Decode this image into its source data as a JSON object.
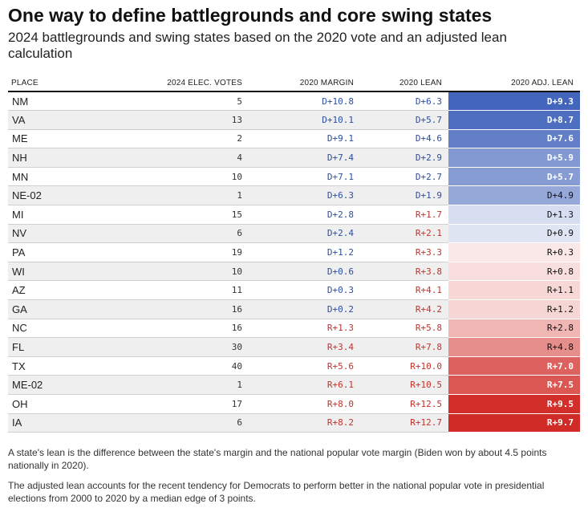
{
  "header": {
    "title": "One way to define battlegrounds and core swing states",
    "subtitle": "2024 battlegrounds and swing states based on the 2020 vote and an adjusted lean calculation"
  },
  "notes": [
    "A state's lean is the difference between the state's margin and the national popular vote margin (Biden won by about 4.5 points nationally in 2020).",
    "The adjusted lean accounts for the recent tendency for Democrats to perform better in the national popular vote in presidential elections from 2000 to 2020 by a median edge of 3 points."
  ],
  "colors": {
    "dem_text": "#2b4ea0",
    "rep_text": "#c3322c",
    "dem_scale_max": "#3c5fb8",
    "rep_scale_max": "#d12b27"
  },
  "chart_data": {
    "type": "table",
    "columns": [
      "PLACE",
      "2024 ELEC. VOTES",
      "2020 MARGIN",
      "2020 LEAN",
      "2020 ADJ. LEAN"
    ],
    "rows": [
      {
        "place": "NM",
        "votes": 5,
        "margin": "D+10.8",
        "lean": "D+6.3",
        "adj_lean": "D+9.3",
        "adj_value": 9.3
      },
      {
        "place": "VA",
        "votes": 13,
        "margin": "D+10.1",
        "lean": "D+5.7",
        "adj_lean": "D+8.7",
        "adj_value": 8.7
      },
      {
        "place": "ME",
        "votes": 2,
        "margin": "D+9.1",
        "lean": "D+4.6",
        "adj_lean": "D+7.6",
        "adj_value": 7.6
      },
      {
        "place": "NH",
        "votes": 4,
        "margin": "D+7.4",
        "lean": "D+2.9",
        "adj_lean": "D+5.9",
        "adj_value": 5.9
      },
      {
        "place": "MN",
        "votes": 10,
        "margin": "D+7.1",
        "lean": "D+2.7",
        "adj_lean": "D+5.7",
        "adj_value": 5.7
      },
      {
        "place": "NE-02",
        "votes": 1,
        "margin": "D+6.3",
        "lean": "D+1.9",
        "adj_lean": "D+4.9",
        "adj_value": 4.9
      },
      {
        "place": "MI",
        "votes": 15,
        "margin": "D+2.8",
        "lean": "R+1.7",
        "adj_lean": "D+1.3",
        "adj_value": 1.3
      },
      {
        "place": "NV",
        "votes": 6,
        "margin": "D+2.4",
        "lean": "R+2.1",
        "adj_lean": "D+0.9",
        "adj_value": 0.9
      },
      {
        "place": "PA",
        "votes": 19,
        "margin": "D+1.2",
        "lean": "R+3.3",
        "adj_lean": "R+0.3",
        "adj_value": -0.3
      },
      {
        "place": "WI",
        "votes": 10,
        "margin": "D+0.6",
        "lean": "R+3.8",
        "adj_lean": "R+0.8",
        "adj_value": -0.8
      },
      {
        "place": "AZ",
        "votes": 11,
        "margin": "D+0.3",
        "lean": "R+4.1",
        "adj_lean": "R+1.1",
        "adj_value": -1.1
      },
      {
        "place": "GA",
        "votes": 16,
        "margin": "D+0.2",
        "lean": "R+4.2",
        "adj_lean": "R+1.2",
        "adj_value": -1.2
      },
      {
        "place": "NC",
        "votes": 16,
        "margin": "R+1.3",
        "lean": "R+5.8",
        "adj_lean": "R+2.8",
        "adj_value": -2.8
      },
      {
        "place": "FL",
        "votes": 30,
        "margin": "R+3.4",
        "lean": "R+7.8",
        "adj_lean": "R+4.8",
        "adj_value": -4.8
      },
      {
        "place": "TX",
        "votes": 40,
        "margin": "R+5.6",
        "lean": "R+10.0",
        "adj_lean": "R+7.0",
        "adj_value": -7.0
      },
      {
        "place": "ME-02",
        "votes": 1,
        "margin": "R+6.1",
        "lean": "R+10.5",
        "adj_lean": "R+7.5",
        "adj_value": -7.5
      },
      {
        "place": "OH",
        "votes": 17,
        "margin": "R+8.0",
        "lean": "R+12.5",
        "adj_lean": "R+9.5",
        "adj_value": -9.5
      },
      {
        "place": "IA",
        "votes": 6,
        "margin": "R+8.2",
        "lean": "R+12.7",
        "adj_lean": "R+9.7",
        "adj_value": -9.7
      }
    ]
  }
}
